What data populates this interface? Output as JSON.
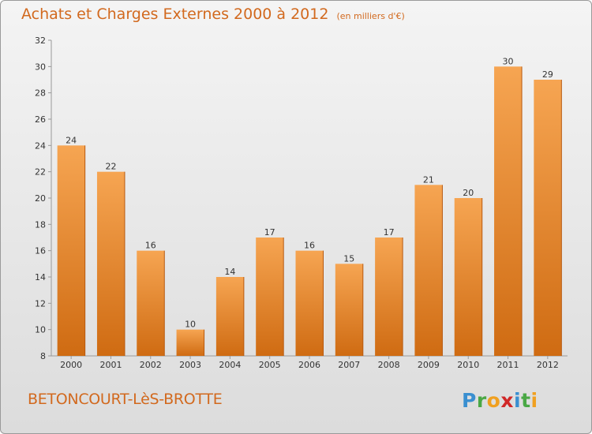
{
  "header": {
    "title": "Achats et Charges Externes 2000 à 2012",
    "subtitle": "(en milliers d'€)"
  },
  "footer": {
    "place_name": "BETONCOURT-LèS-BROTTE",
    "logo_text": "Proxiti"
  },
  "colors": {
    "title": "#d2691e",
    "bar_top": "#f6a552",
    "bar_bottom": "#cf6b12",
    "axis": "#999999"
  },
  "chart_data": {
    "type": "bar",
    "title": "Achats et Charges Externes 2000 à 2012",
    "subtitle": "(en milliers d'€)",
    "categories": [
      "2000",
      "2001",
      "2002",
      "2003",
      "2004",
      "2005",
      "2006",
      "2007",
      "2008",
      "2009",
      "2010",
      "2011",
      "2012"
    ],
    "values": [
      24,
      22,
      16,
      10,
      14,
      17,
      16,
      15,
      17,
      21,
      20,
      30,
      29
    ],
    "ylim": [
      8,
      32
    ],
    "yticks": [
      8,
      10,
      12,
      14,
      16,
      18,
      20,
      22,
      24,
      26,
      28,
      30,
      32
    ],
    "grid": false,
    "legend": "none"
  }
}
